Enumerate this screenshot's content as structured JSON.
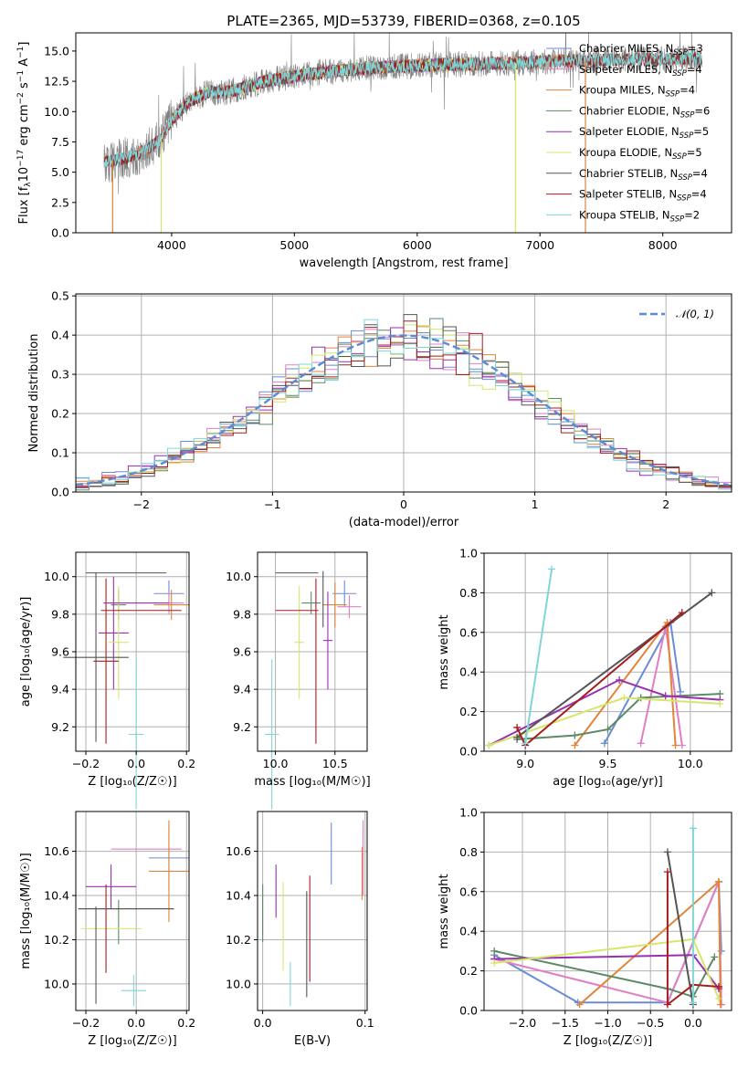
{
  "colors": {
    "Chabrier MILES": "#6a8bd6",
    "Salpeter MILES": "#e07fc3",
    "Kroupa MILES": "#e0853a",
    "Chabrier ELODIE": "#5c8a66",
    "Salpeter ELODIE": "#9a2fb0",
    "Kroupa ELODIE": "#d6e66a",
    "Chabrier STELIB": "#555555",
    "Salpeter STELIB": "#a51e1e",
    "Kroupa STELIB": "#7fd6d6"
  },
  "chart_data": [
    {
      "id": "spectrum",
      "type": "line",
      "title": "PLATE=2365, MJD=53739, FIBERID=0368, z=0.105",
      "xlabel": "wavelength [Angstrom, rest frame]",
      "ylabel_parts": [
        "Flux [f",
        "λ",
        "10",
        "−17",
        " erg cm",
        "−2",
        " s",
        "−1",
        " A",
        "−1",
        "]"
      ],
      "xlim": [
        3220,
        8560
      ],
      "ylim": [
        0,
        16.5
      ],
      "xticks": [
        4000,
        5000,
        6000,
        7000,
        8000
      ],
      "xtick_labels": [
        "4000",
        "5000",
        "6000",
        "7000",
        "8000"
      ],
      "yticks": [
        0,
        2.5,
        5,
        7.5,
        10,
        12.5,
        15
      ],
      "ytick_labels": [
        "0.0",
        "2.5",
        "5.0",
        "7.5",
        "10.0",
        "12.5",
        "15.0"
      ],
      "legend": {
        "position": "upper right",
        "entries": [
          {
            "name": "Chabrier MILES",
            "nssp": "3"
          },
          {
            "name": "Salpeter MILES",
            "nssp": "4"
          },
          {
            "name": "Kroupa MILES",
            "nssp": "4"
          },
          {
            "name": "Chabrier ELODIE",
            "nssp": "6"
          },
          {
            "name": "Salpeter ELODIE",
            "nssp": "5"
          },
          {
            "name": "Kroupa ELODIE",
            "nssp": "5"
          },
          {
            "name": "Chabrier STELIB",
            "nssp": "4"
          },
          {
            "name": "Salpeter STELIB",
            "nssp": "4"
          },
          {
            "name": "Kroupa STELIB",
            "nssp": "2"
          }
        ]
      },
      "continuum": {
        "x": [
          3450,
          3600,
          3750,
          3900,
          4000,
          4150,
          4300,
          4450,
          4600,
          4800,
          5000,
          5200,
          5400,
          5600,
          5800,
          6000,
          6200,
          6400,
          6600,
          6800,
          7000,
          7200,
          7400,
          7600,
          7800,
          8000,
          8200,
          8320
        ],
        "y": [
          5.8,
          6.1,
          6.6,
          7.6,
          9.3,
          10.9,
          11.6,
          11.6,
          12.0,
          12.6,
          12.9,
          13.2,
          13.4,
          13.6,
          13.7,
          13.8,
          13.9,
          13.9,
          14.0,
          14.0,
          14.1,
          14.2,
          14.2,
          14.3,
          14.3,
          14.3,
          14.4,
          14.4
        ]
      },
      "spikes": [
        {
          "x": 3520,
          "color": "Kroupa MILES"
        },
        {
          "x": 3915,
          "color": "Kroupa ELODIE"
        },
        {
          "x": 6800,
          "color": "Kroupa ELODIE"
        },
        {
          "x": 7370,
          "color": "Kroupa MILES"
        }
      ]
    },
    {
      "id": "residuals",
      "type": "histogram",
      "xlabel": "(data-model)/error",
      "ylabel": "Normed distribution",
      "xlim": [
        -2.5,
        2.5
      ],
      "ylim": [
        0,
        0.505
      ],
      "xticks": [
        -2,
        -1,
        0,
        1,
        2
      ],
      "xtick_labels": [
        "−2",
        "−1",
        "0",
        "1",
        "2"
      ],
      "yticks": [
        0,
        0.1,
        0.2,
        0.3,
        0.4,
        0.5
      ],
      "ytick_labels": [
        "0.0",
        "0.1",
        "0.2",
        "0.3",
        "0.4",
        "0.5"
      ],
      "bin_width": 0.1,
      "legend": {
        "position": "upper right",
        "label": "𝒩(0, 1)",
        "color": "#5b8bd6"
      }
    },
    {
      "id": "age-vs-Z",
      "type": "errorbar",
      "xlabel": "Z [log₁₀(Z/Z☉)]",
      "ylabel": "age  [log₁₀(age/yr)]",
      "xlim": [
        -0.24,
        0.21
      ],
      "ylim": [
        9.07,
        10.13
      ],
      "xticks": [
        -0.2,
        0,
        0.2
      ],
      "xtick_labels": [
        "−0.2",
        "0.0",
        "0.2"
      ],
      "yticks": [
        9.2,
        9.4,
        9.6,
        9.8,
        10.0
      ],
      "ytick_labels": [
        "9.2",
        "9.4",
        "9.6",
        "9.8",
        "10.0"
      ],
      "points": [
        {
          "s": "Chabrier MILES",
          "x": 0.13,
          "xerr": 0.06,
          "y": 9.91,
          "yerr": 0.07
        },
        {
          "s": "Salpeter MILES",
          "x": 0.13,
          "xerr": 0.06,
          "y": 9.86,
          "yerr": 0.06
        },
        {
          "s": "Kroupa MILES",
          "x": 0.14,
          "xerr": 0.07,
          "y": 9.85,
          "yerr": 0.08
        },
        {
          "s": "Chabrier ELODIE",
          "x": -0.07,
          "xerr": 0.03,
          "y": 9.85,
          "yerr": 0.08
        },
        {
          "s": "Salpeter ELODIE",
          "x": -0.09,
          "xerr": 0.06,
          "y": 9.7,
          "yerr": 0.3
        },
        {
          "s": "Kroupa ELODIE",
          "x": -0.07,
          "xerr": 0.04,
          "y": 9.65,
          "yerr": 0.3
        },
        {
          "s": "Chabrier STELIB",
          "x": -0.16,
          "xerr": 0.13,
          "y": 9.57,
          "yerr": 0.45
        },
        {
          "s": "Salpeter STELIB",
          "x": -0.12,
          "xerr": 0.05,
          "y": 9.55,
          "yerr": 0.44
        },
        {
          "s": "Kroupa STELIB",
          "x": 0.0,
          "xerr": 0.03,
          "y": 9.16,
          "yerr": 0.4
        },
        {
          "s": "Chabrier STELIB",
          "x": -0.04,
          "xerr": 0.16,
          "y": 10.02,
          "yerr": 0.0
        },
        {
          "s": "Salpeter STELIB",
          "x": 0.02,
          "xerr": 0.16,
          "y": 9.82,
          "yerr": 0.0
        },
        {
          "s": "Salpeter ELODIE",
          "x": 0.0,
          "xerr": 0.13,
          "y": 9.86,
          "yerr": 0.0
        }
      ]
    },
    {
      "id": "age-vs-mass",
      "type": "errorbar",
      "xlabel": "mass [log₁₀(M/M☉)]",
      "ylabel": "",
      "xlim": [
        9.85,
        10.77
      ],
      "ylim": [
        9.07,
        10.13
      ],
      "xticks": [
        10.0,
        10.5
      ],
      "xtick_labels": [
        "10.0",
        "10.5"
      ],
      "yticks": [
        9.2,
        9.4,
        9.6,
        9.8,
        10.0
      ],
      "ytick_labels": [
        "9.2",
        "9.4",
        "9.6",
        "9.8",
        "10.0"
      ],
      "points": [
        {
          "s": "Chabrier MILES",
          "x": 10.58,
          "xerr": 0.1,
          "y": 9.91,
          "yerr": 0.07
        },
        {
          "s": "Salpeter MILES",
          "x": 10.62,
          "xerr": 0.1,
          "y": 9.84,
          "yerr": 0.06
        },
        {
          "s": "Kroupa MILES",
          "x": 10.5,
          "xerr": 0.1,
          "y": 9.85,
          "yerr": 0.12
        },
        {
          "s": "Chabrier ELODIE",
          "x": 10.3,
          "xerr": 0.08,
          "y": 9.86,
          "yerr": 0.06
        },
        {
          "s": "Salpeter ELODIE",
          "x": 10.44,
          "xerr": 0.04,
          "y": 9.66,
          "yerr": 0.26
        },
        {
          "s": "Kroupa ELODIE",
          "x": 10.2,
          "xerr": 0.04,
          "y": 9.65,
          "yerr": 0.3
        },
        {
          "s": "Chabrier STELIB",
          "x": 10.18,
          "xerr": 0.18,
          "y": 10.02,
          "yerr": 0.0
        },
        {
          "s": "Salpeter STELIB",
          "x": 10.18,
          "xerr": 0.18,
          "y": 9.82,
          "yerr": 0.0
        },
        {
          "s": "Salpeter STELIB",
          "x": 10.34,
          "xerr": 0.0,
          "y": 9.55,
          "yerr": 0.44
        },
        {
          "s": "Chabrier STELIB",
          "x": 10.4,
          "xerr": 0.0,
          "y": 9.88,
          "yerr": 0.15
        },
        {
          "s": "Kroupa STELIB",
          "x": 9.97,
          "xerr": 0.06,
          "y": 9.16,
          "yerr": 0.4
        }
      ]
    },
    {
      "id": "weight-vs-age",
      "type": "line",
      "xlabel": "age  [log₁₀(age/yr)]",
      "ylabel": "mass weight",
      "xlim": [
        8.75,
        10.25
      ],
      "ylim": [
        0,
        1
      ],
      "xticks": [
        9.0,
        9.5,
        10.0
      ],
      "xtick_labels": [
        "9.0",
        "9.5",
        "10.0"
      ],
      "yticks": [
        0,
        0.2,
        0.4,
        0.6,
        0.8,
        1.0
      ],
      "ytick_labels": [
        "0.0",
        "0.2",
        "0.4",
        "0.6",
        "0.8",
        "1.0"
      ],
      "series": [
        {
          "s": "Chabrier MILES",
          "x": [
            9.48,
            9.88,
            9.94
          ],
          "y": [
            0.04,
            0.65,
            0.3
          ]
        },
        {
          "s": "Salpeter MILES",
          "x": [
            9.7,
            9.85,
            9.95
          ],
          "y": [
            0.04,
            0.63,
            0.03
          ]
        },
        {
          "s": "Kroupa MILES",
          "x": [
            9.3,
            9.86,
            9.91
          ],
          "y": [
            0.03,
            0.65,
            0.03
          ]
        },
        {
          "s": "Chabrier ELODIE",
          "x": [
            8.95,
            9.3,
            9.5,
            9.7,
            10.18
          ],
          "y": [
            0.06,
            0.08,
            0.11,
            0.27,
            0.29
          ]
        },
        {
          "s": "Salpeter ELODIE",
          "x": [
            8.78,
            9.57,
            9.85,
            10.18
          ],
          "y": [
            0.03,
            0.36,
            0.28,
            0.26
          ]
        },
        {
          "s": "Kroupa ELODIE",
          "x": [
            8.78,
            9.6,
            10.18
          ],
          "y": [
            0.03,
            0.27,
            0.24
          ]
        },
        {
          "s": "Chabrier STELIB",
          "x": [
            8.95,
            10.13
          ],
          "y": [
            0.07,
            0.8
          ]
        },
        {
          "s": "Salpeter STELIB",
          "x": [
            8.95,
            9.0,
            9.95
          ],
          "y": [
            0.12,
            0.03,
            0.7
          ]
        },
        {
          "s": "Kroupa STELIB",
          "x": [
            9.0,
            9.16
          ],
          "y": [
            0.04,
            0.92
          ]
        }
      ]
    },
    {
      "id": "mass-vs-Z",
      "type": "errorbar",
      "xlabel": "Z [log₁₀(Z/Z☉)]",
      "ylabel": "mass [log₁₀(M/M☉)]",
      "xlim": [
        -0.24,
        0.21
      ],
      "ylim": [
        9.88,
        10.78
      ],
      "xticks": [
        -0.2,
        0,
        0.2
      ],
      "xtick_labels": [
        "−0.2",
        "0.0",
        "0.2"
      ],
      "yticks": [
        10.0,
        10.2,
        10.4,
        10.6
      ],
      "ytick_labels": [
        "10.0",
        "10.2",
        "10.4",
        "10.6"
      ],
      "points": [
        {
          "s": "Chabrier MILES",
          "x": 0.13,
          "xerr": 0.08,
          "y": 10.57,
          "yerr": 0.15
        },
        {
          "s": "Salpeter MILES",
          "x": 0.04,
          "xerr": 0.14,
          "y": 10.61,
          "yerr": 0.0
        },
        {
          "s": "Kroupa MILES",
          "x": 0.13,
          "xerr": 0.08,
          "y": 10.51,
          "yerr": 0.23
        },
        {
          "s": "Chabrier ELODIE",
          "x": -0.07,
          "xerr": 0.0,
          "y": 10.28,
          "yerr": 0.1
        },
        {
          "s": "Salpeter ELODIE",
          "x": -0.1,
          "xerr": 0.1,
          "y": 10.44,
          "yerr": 0.1
        },
        {
          "s": "Kroupa ELODIE",
          "x": -0.1,
          "xerr": 0.12,
          "y": 10.25,
          "yerr": 0.0
        },
        {
          "s": "Chabrier STELIB",
          "x": -0.16,
          "xerr": 0.0,
          "y": 10.13,
          "yerr": 0.22
        },
        {
          "s": "Salpeter STELIB",
          "x": -0.12,
          "xerr": 0.0,
          "y": 10.25,
          "yerr": 0.2
        },
        {
          "s": "Salpeter STELIB",
          "x": -0.04,
          "xerr": 0.19,
          "y": 10.34,
          "yerr": 0.0
        },
        {
          "s": "Chabrier STELIB",
          "x": -0.04,
          "xerr": 0.19,
          "y": 10.34,
          "yerr": 0.0
        },
        {
          "s": "Kroupa STELIB",
          "x": -0.01,
          "xerr": 0.05,
          "y": 9.97,
          "yerr": 0.07
        }
      ]
    },
    {
      "id": "mass-vs-EBV",
      "type": "errorbar",
      "xlabel": "E(B-V)",
      "ylabel": "",
      "xlim": [
        -0.005,
        0.102
      ],
      "ylim": [
        9.88,
        10.78
      ],
      "xticks": [
        0,
        0.1
      ],
      "xtick_labels": [
        "0.0",
        "0.1"
      ],
      "yticks": [
        10.0,
        10.2,
        10.4,
        10.6
      ],
      "ytick_labels": [
        "10.0",
        "10.2",
        "10.4",
        "10.6"
      ],
      "points": [
        {
          "s": "Chabrier ELODIE",
          "x": 0.0,
          "xerr": 0.0,
          "y": 10.32,
          "yerr": 0.13
        },
        {
          "s": "Salpeter ELODIE",
          "x": 0.013,
          "xerr": 0.0,
          "y": 10.42,
          "yerr": 0.12
        },
        {
          "s": "Kroupa ELODIE",
          "x": 0.02,
          "xerr": 0.0,
          "y": 10.26,
          "yerr": 0.2
        },
        {
          "s": "Kroupa STELIB",
          "x": 0.027,
          "xerr": 0.0,
          "y": 10.0,
          "yerr": 0.1
        },
        {
          "s": "Chabrier STELIB",
          "x": 0.043,
          "xerr": 0.0,
          "y": 10.18,
          "yerr": 0.24
        },
        {
          "s": "Salpeter STELIB",
          "x": 0.046,
          "xerr": 0.0,
          "y": 10.25,
          "yerr": 0.24
        },
        {
          "s": "Chabrier MILES",
          "x": 0.067,
          "xerr": 0.0,
          "y": 10.59,
          "yerr": 0.14
        },
        {
          "s": "Kroupa MILES",
          "x": 0.097,
          "xerr": 0.0,
          "y": 10.5,
          "yerr": 0.12
        },
        {
          "s": "Salpeter MILES",
          "x": 0.098,
          "xerr": 0.0,
          "y": 10.57,
          "yerr": 0.17
        }
      ]
    },
    {
      "id": "weight-vs-Z",
      "type": "line",
      "xlabel": "Z [log₁₀(Z/Z☉)]",
      "ylabel": "mass weight",
      "xlim": [
        -2.45,
        0.45
      ],
      "ylim": [
        0,
        1
      ],
      "xticks": [
        -2.0,
        -1.5,
        -1.0,
        -0.5,
        0.0
      ],
      "xtick_labels": [
        "−2.0",
        "−1.5",
        "−1.0",
        "−0.5",
        "0.0"
      ],
      "yticks": [
        0,
        0.2,
        0.4,
        0.6,
        0.8,
        1.0
      ],
      "ytick_labels": [
        "0.0",
        "0.2",
        "0.4",
        "0.6",
        "0.8",
        "1.0"
      ],
      "series": [
        {
          "s": "Chabrier MILES",
          "x": [
            -2.33,
            -1.35,
            -0.3,
            0.3,
            0.33
          ],
          "y": [
            0.28,
            0.04,
            0.04,
            0.65,
            0.3
          ]
        },
        {
          "s": "Salpeter MILES",
          "x": [
            -2.33,
            -0.3,
            0.3,
            0.33
          ],
          "y": [
            0.26,
            0.04,
            0.65,
            0.03
          ]
        },
        {
          "s": "Kroupa MILES",
          "x": [
            -1.33,
            0.3,
            0.32
          ],
          "y": [
            0.03,
            0.65,
            0.03
          ]
        },
        {
          "s": "Chabrier ELODIE",
          "x": [
            -2.33,
            -0.3,
            0.0,
            0.25
          ],
          "y": [
            0.3,
            0.11,
            0.07,
            0.27
          ]
        },
        {
          "s": "Salpeter ELODIE",
          "x": [
            -2.33,
            0.0,
            0.3
          ],
          "y": [
            0.26,
            0.28,
            0.11
          ]
        },
        {
          "s": "Kroupa ELODIE",
          "x": [
            -2.33,
            0.0,
            0.3
          ],
          "y": [
            0.24,
            0.36,
            0.06
          ]
        },
        {
          "s": "Chabrier STELIB",
          "x": [
            -0.3,
            0.0
          ],
          "y": [
            0.8,
            0.03
          ]
        },
        {
          "s": "Salpeter STELIB",
          "x": [
            -0.3,
            -0.3,
            0.0,
            0.3
          ],
          "y": [
            0.7,
            0.03,
            0.13,
            0.12
          ]
        },
        {
          "s": "Kroupa STELIB",
          "x": [
            0.0,
            0.0
          ],
          "y": [
            0.92,
            0.04
          ]
        }
      ]
    }
  ]
}
